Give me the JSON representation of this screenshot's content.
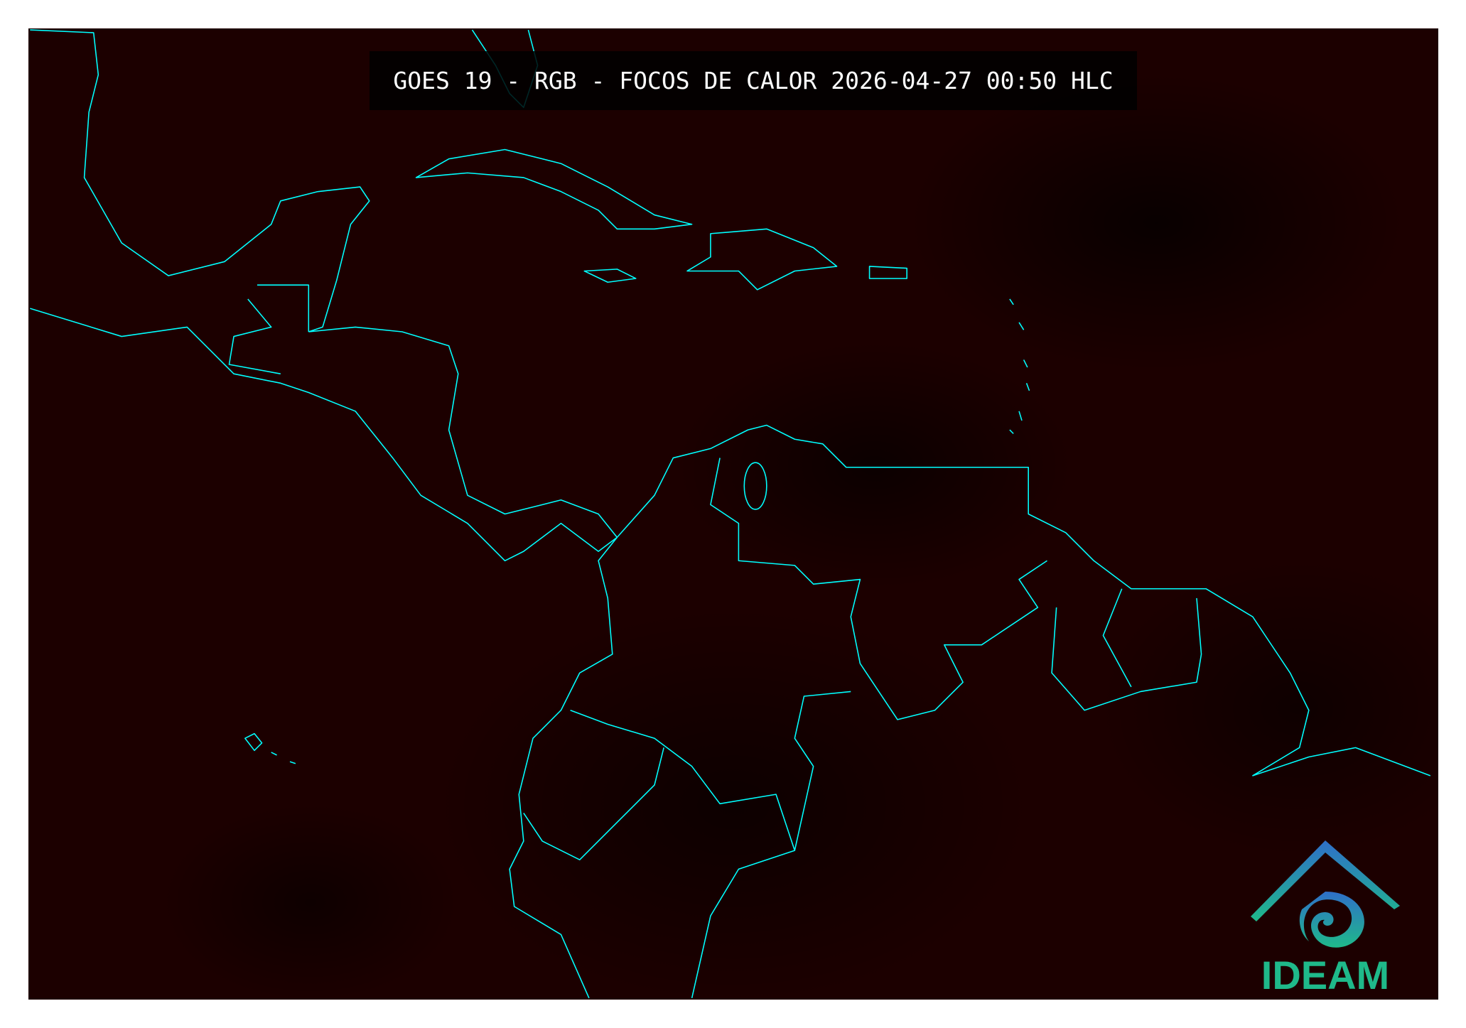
{
  "title": "GOES 19 - RGB - FOCOS DE CALOR 2026-04-27 00:50 HLC",
  "logo": {
    "text": "IDEAM",
    "colors": [
      "#2f6fc9",
      "#1fb98a"
    ]
  },
  "colors": {
    "background": "#1c0000",
    "coastline": "#00ffff",
    "title_text": "#ffffff"
  }
}
